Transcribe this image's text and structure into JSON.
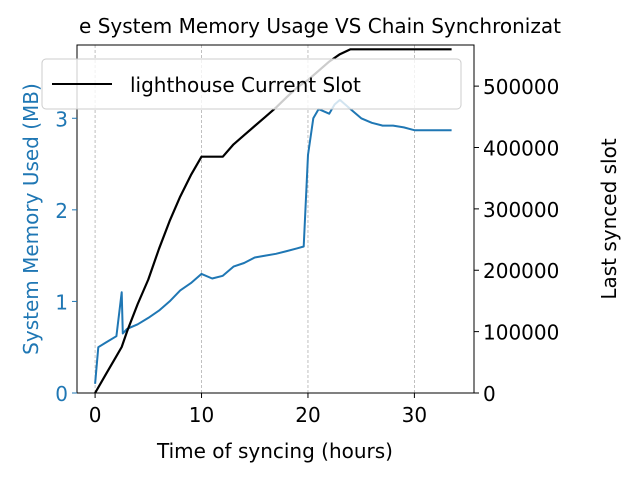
{
  "chart_data": {
    "type": "line",
    "title": "e System Memory Usage VS Chain Synchronizat",
    "xlabel": "Time of syncing (hours)",
    "ylabel_left": "System Memory Used (MB)",
    "ylabel_right": "Last synced slot",
    "x_ticks": [
      "0",
      "10",
      "20",
      "30"
    ],
    "y_left_ticks": [
      "0",
      "1",
      "2",
      "3"
    ],
    "y_right_ticks": [
      "0",
      "100000",
      "200000",
      "300000",
      "400000",
      "500000"
    ],
    "xlim": [
      -1.7,
      35.6
    ],
    "ylim_left": [
      0,
      3.8
    ],
    "ylim_right": [
      0,
      567000
    ],
    "grid": "vertical dashed",
    "legend": {
      "placement": "upper",
      "entries": [
        "lighthouse Current Slot"
      ]
    },
    "colors": {
      "memory": "#1f77b4",
      "slot": "#000000",
      "grid": "#b0b0b0"
    },
    "series": [
      {
        "name": "lighthouse Current Slot",
        "axis": "right",
        "color": "#000000",
        "x": [
          0,
          1,
          2,
          2.5,
          3,
          4,
          5,
          6,
          7,
          8,
          9,
          10,
          10.5,
          12,
          13,
          14,
          15,
          16,
          17,
          18,
          19,
          20,
          21,
          22,
          23,
          24,
          27,
          30,
          33.5
        ],
        "values": [
          0,
          30000,
          60000,
          75000,
          100000,
          145000,
          185000,
          235000,
          280000,
          320000,
          355000,
          385000,
          385000,
          385000,
          405000,
          420000,
          435000,
          450000,
          465000,
          482000,
          498000,
          510000,
          525000,
          540000,
          552000,
          560000,
          560000,
          560000,
          560000
        ]
      },
      {
        "name": "",
        "axis": "left",
        "color": "#1f77b4",
        "x": [
          0,
          0.3,
          1,
          2,
          2.5,
          2.6,
          3,
          4,
          5,
          6,
          7,
          8,
          9,
          10,
          11,
          12,
          13,
          14,
          15,
          16,
          17,
          18,
          19,
          19.6,
          20,
          20.5,
          21,
          22,
          22.5,
          23,
          24,
          25,
          26,
          27,
          28,
          29,
          30,
          31,
          32,
          33.5
        ],
        "values": [
          0.1,
          0.5,
          0.55,
          0.62,
          1.1,
          0.65,
          0.7,
          0.75,
          0.82,
          0.9,
          1.0,
          1.12,
          1.2,
          1.3,
          1.25,
          1.28,
          1.38,
          1.42,
          1.48,
          1.5,
          1.52,
          1.55,
          1.58,
          1.6,
          2.6,
          3.0,
          3.1,
          3.05,
          3.15,
          3.2,
          3.1,
          3.0,
          2.95,
          2.92,
          2.92,
          2.9,
          2.87,
          2.87,
          2.87,
          2.87
        ]
      }
    ]
  }
}
